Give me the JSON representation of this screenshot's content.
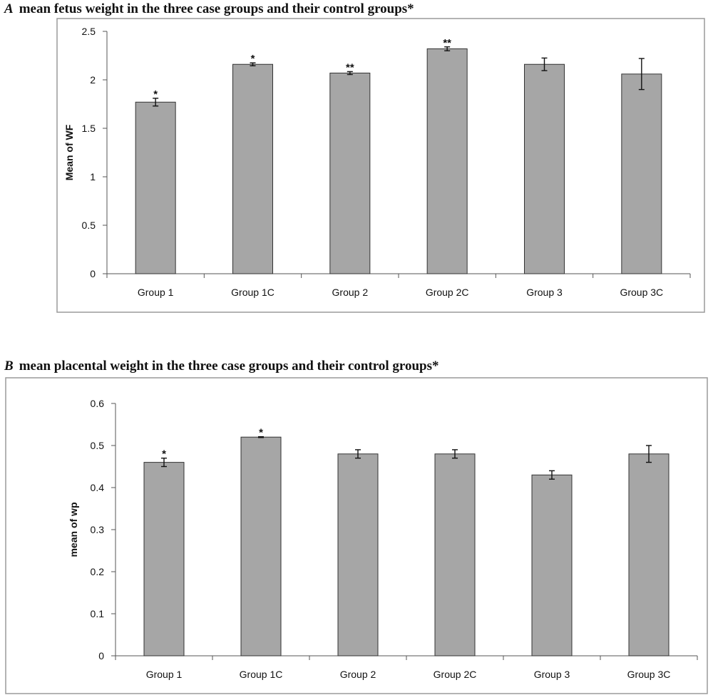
{
  "chart_data": [
    {
      "panel": "A",
      "type": "bar",
      "title": "mean fetus weight in the three case groups and their control groups*",
      "xlabel": "",
      "ylabel": "Mean of WF",
      "ylim": [
        0,
        2.5
      ],
      "yticks": [
        "0",
        "0.5",
        "1",
        "1.5",
        "2",
        "2.5"
      ],
      "grid": false,
      "categories": [
        "Group 1",
        "Group 1C",
        "Group 2",
        "Group 2C",
        "Group 3",
        "Group 3C"
      ],
      "values": [
        1.77,
        2.16,
        2.07,
        2.32,
        2.16,
        2.06
      ],
      "error": [
        0.04,
        0.015,
        0.015,
        0.02,
        0.065,
        0.16
      ],
      "significance": [
        "*",
        "*",
        "**",
        "**",
        "",
        ""
      ],
      "bar_color": "#a6a6a6",
      "bar_edge_color": "#333333",
      "frame_color": "#9a9a9a"
    },
    {
      "panel": "B",
      "type": "bar",
      "title": "mean placental weight in the three case groups and their control groups*",
      "xlabel": "",
      "ylabel": "mean of wp",
      "ylim": [
        0,
        0.6
      ],
      "yticks": [
        "0",
        "0.1",
        "0.2",
        "0.3",
        "0.4",
        "0.5",
        "0.6"
      ],
      "grid": false,
      "categories": [
        "Group 1",
        "Group 1C",
        "Group 2",
        "Group 2C",
        "Group 3",
        "Group 3C"
      ],
      "values": [
        0.46,
        0.52,
        0.48,
        0.48,
        0.43,
        0.48
      ],
      "error": [
        0.01,
        0.001,
        0.01,
        0.01,
        0.01,
        0.02
      ],
      "significance": [
        "*",
        "*",
        "",
        "",
        "",
        ""
      ],
      "bar_color": "#a6a6a6",
      "bar_edge_color": "#333333",
      "frame_color": "#9a9a9a"
    }
  ]
}
